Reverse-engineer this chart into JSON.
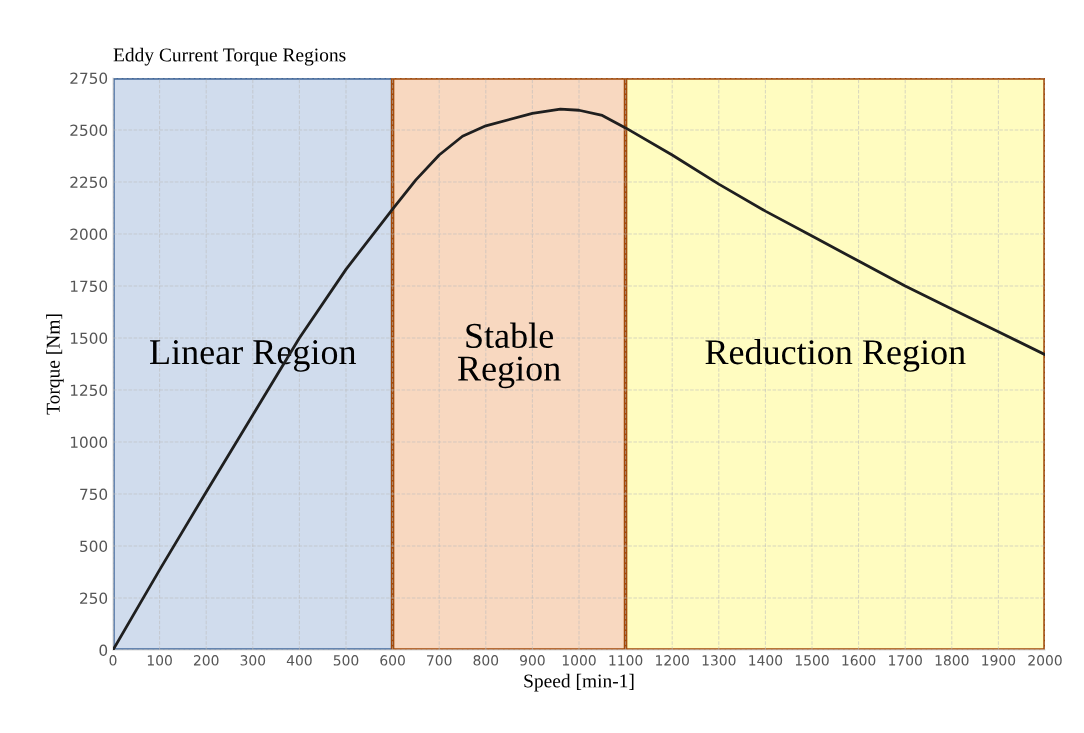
{
  "chart_data": {
    "type": "line",
    "title": "Eddy Current Torque Regions",
    "xlabel": "Speed [min-1]",
    "ylabel": "Torque [Nm]",
    "x": [
      0,
      100,
      200,
      300,
      400,
      500,
      600,
      650,
      700,
      750,
      800,
      900,
      960,
      1000,
      1050,
      1100,
      1200,
      1300,
      1400,
      1500,
      1600,
      1700,
      1800,
      1900,
      2000
    ],
    "series": [
      {
        "color": "#1f1f1f",
        "values": [
          0,
          385,
          760,
          1130,
          1500,
          1830,
          2120,
          2260,
          2380,
          2470,
          2520,
          2580,
          2600,
          2595,
          2570,
          2510,
          2380,
          2240,
          2110,
          1990,
          1870,
          1750,
          1640,
          1530,
          1420
        ]
      }
    ],
    "xlim": [
      0,
      2000
    ],
    "xticks": [
      0,
      100,
      200,
      300,
      400,
      500,
      600,
      700,
      800,
      900,
      1000,
      1100,
      1200,
      1300,
      1400,
      1500,
      1600,
      1700,
      1800,
      1900,
      2000
    ],
    "ylim": [
      0,
      2750
    ],
    "yticks": [
      0,
      250,
      500,
      750,
      1000,
      1250,
      1500,
      1750,
      2000,
      2250,
      2500,
      2750
    ],
    "bands": [
      {
        "axis": "x",
        "from": 0,
        "to": 600,
        "label": "Linear Region",
        "color": "#d0dced"
      },
      {
        "axis": "x",
        "from": 600,
        "to": 1100,
        "label": "Stable\nRegion",
        "color": "#f8d8c0"
      },
      {
        "axis": "x",
        "from": 1100,
        "to": 2000,
        "label": "Reduction Region",
        "color": "#fffcc0"
      }
    ],
    "grid": true,
    "marker": "none",
    "line_style": "solid"
  }
}
